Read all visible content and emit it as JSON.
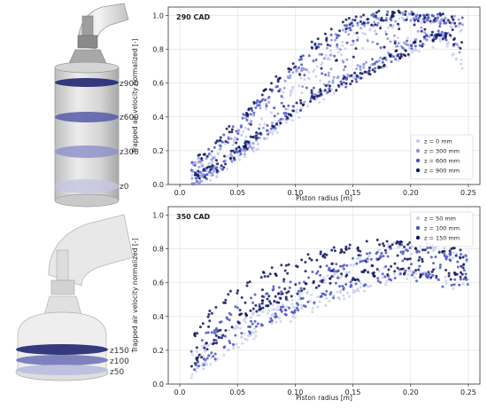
{
  "geometry_panels": [
    {
      "labels": [
        "z900",
        "z600",
        "z300",
        "z0"
      ]
    },
    {
      "labels": [
        "z150",
        "z100",
        "z50"
      ]
    }
  ],
  "chart_data": [
    {
      "type": "scatter",
      "title": "290 CAD",
      "xlabel": "Piston radius [m]",
      "ylabel": "Trapped air velocity normalized [-]",
      "xlim": [
        -0.01,
        0.26
      ],
      "ylim": [
        0,
        1.05
      ],
      "xticks": [
        0.0,
        0.05,
        0.1,
        0.15,
        0.2,
        0.25
      ],
      "xtick_labels": [
        "0.0",
        "0.05",
        "0.10",
        "0.15",
        "0.20",
        "0.25"
      ],
      "yticks": [
        0.0,
        0.2,
        0.4,
        0.6,
        0.8,
        1.0
      ],
      "ytick_labels": [
        "0.0",
        "0.2",
        "0.4",
        "0.6",
        "0.8",
        "1.0"
      ],
      "grid": true,
      "legend_position": "bottom-right",
      "series": [
        {
          "name": "z = 0 mm",
          "color": "#c9cef2",
          "x": [
            0.01,
            0.03,
            0.05,
            0.07,
            0.09,
            0.11,
            0.13,
            0.15,
            0.17,
            0.19,
            0.21,
            0.23,
            0.245
          ],
          "lower": [
            0.02,
            0.06,
            0.15,
            0.25,
            0.36,
            0.46,
            0.55,
            0.63,
            0.7,
            0.76,
            0.82,
            0.86,
            0.7
          ],
          "upper": [
            0.08,
            0.16,
            0.28,
            0.4,
            0.52,
            0.64,
            0.76,
            0.86,
            0.93,
            0.97,
            0.98,
            0.97,
            0.94
          ]
        },
        {
          "name": "z = 300 mm",
          "color": "#8d95e3",
          "x": [
            0.01,
            0.03,
            0.05,
            0.07,
            0.09,
            0.11,
            0.13,
            0.15,
            0.17,
            0.19,
            0.21,
            0.23,
            0.245
          ],
          "lower": [
            0.02,
            0.07,
            0.17,
            0.28,
            0.39,
            0.5,
            0.59,
            0.67,
            0.74,
            0.8,
            0.86,
            0.9,
            0.78
          ],
          "upper": [
            0.1,
            0.19,
            0.32,
            0.45,
            0.59,
            0.72,
            0.84,
            0.93,
            0.98,
            0.99,
            0.99,
            0.98,
            0.96
          ]
        },
        {
          "name": "z = 600 mm",
          "color": "#4a55c8",
          "x": [
            0.01,
            0.03,
            0.05,
            0.07,
            0.09,
            0.11,
            0.13,
            0.15,
            0.17,
            0.19,
            0.21,
            0.23,
            0.245
          ],
          "lower": [
            0.03,
            0.08,
            0.18,
            0.29,
            0.4,
            0.49,
            0.56,
            0.62,
            0.7,
            0.78,
            0.85,
            0.89,
            0.82
          ],
          "upper": [
            0.11,
            0.21,
            0.35,
            0.49,
            0.63,
            0.76,
            0.87,
            0.95,
            0.99,
            1.0,
            0.99,
            0.98,
            0.97
          ]
        },
        {
          "name": "z = 900 mm",
          "color": "#10185e",
          "x": [
            0.01,
            0.03,
            0.05,
            0.07,
            0.09,
            0.11,
            0.13,
            0.15,
            0.17,
            0.19,
            0.21,
            0.23,
            0.245
          ],
          "lower": [
            0.03,
            0.09,
            0.19,
            0.3,
            0.41,
            0.5,
            0.57,
            0.63,
            0.7,
            0.77,
            0.84,
            0.88,
            0.8
          ],
          "upper": [
            0.12,
            0.23,
            0.37,
            0.51,
            0.66,
            0.79,
            0.9,
            0.97,
            1.0,
            1.0,
            0.99,
            0.98,
            0.96
          ]
        }
      ]
    },
    {
      "type": "scatter",
      "title": "350 CAD",
      "xlabel": "Piston radius [m]",
      "ylabel": "Trapped air velocity normalized [-]",
      "xlim": [
        -0.01,
        0.26
      ],
      "ylim": [
        0,
        1.05
      ],
      "xticks": [
        0.0,
        0.05,
        0.1,
        0.15,
        0.2,
        0.25
      ],
      "xtick_labels": [
        "0.0",
        "0.05",
        "0.10",
        "0.15",
        "0.20",
        "0.25"
      ],
      "yticks": [
        0.0,
        0.2,
        0.4,
        0.6,
        0.8,
        1.0
      ],
      "ytick_labels": [
        "0.0",
        "0.2",
        "0.4",
        "0.6",
        "0.8",
        "1.0"
      ],
      "grid": true,
      "legend_position": "top-right",
      "series": [
        {
          "name": "z = 50 mm",
          "color": "#c9cef2",
          "x": [
            0.01,
            0.03,
            0.05,
            0.07,
            0.09,
            0.11,
            0.13,
            0.15,
            0.17,
            0.19,
            0.21,
            0.23,
            0.25
          ],
          "lower": [
            0.06,
            0.14,
            0.24,
            0.32,
            0.38,
            0.44,
            0.5,
            0.55,
            0.6,
            0.64,
            0.65,
            0.6,
            0.58
          ],
          "upper": [
            0.16,
            0.26,
            0.35,
            0.42,
            0.48,
            0.55,
            0.62,
            0.7,
            0.78,
            0.84,
            0.85,
            0.78,
            0.74
          ]
        },
        {
          "name": "z = 100 mm",
          "color": "#4a55c8",
          "x": [
            0.01,
            0.03,
            0.05,
            0.07,
            0.09,
            0.11,
            0.13,
            0.15,
            0.17,
            0.19,
            0.21,
            0.23,
            0.25
          ],
          "lower": [
            0.08,
            0.17,
            0.28,
            0.37,
            0.43,
            0.48,
            0.53,
            0.58,
            0.62,
            0.65,
            0.63,
            0.6,
            0.6
          ],
          "upper": [
            0.19,
            0.32,
            0.44,
            0.52,
            0.58,
            0.63,
            0.68,
            0.72,
            0.76,
            0.8,
            0.8,
            0.76,
            0.74
          ]
        },
        {
          "name": "z = 150 mm",
          "color": "#10185e",
          "x": [
            0.01,
            0.03,
            0.05,
            0.07,
            0.09,
            0.11,
            0.13,
            0.15,
            0.17,
            0.19,
            0.21,
            0.23,
            0.25
          ],
          "lower": [
            0.12,
            0.26,
            0.38,
            0.46,
            0.52,
            0.57,
            0.61,
            0.64,
            0.67,
            0.68,
            0.66,
            0.64,
            0.63
          ],
          "upper": [
            0.28,
            0.44,
            0.56,
            0.63,
            0.69,
            0.74,
            0.78,
            0.81,
            0.83,
            0.83,
            0.81,
            0.78,
            0.77
          ]
        }
      ]
    }
  ]
}
